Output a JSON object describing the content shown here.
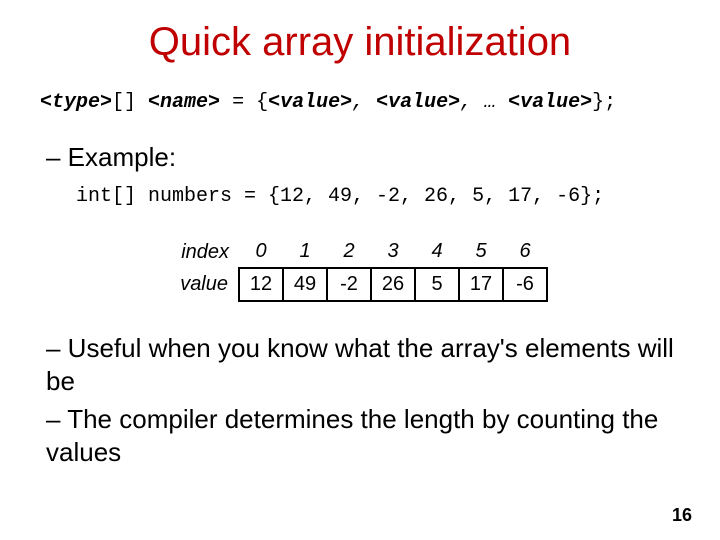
{
  "title": "Quick array initialization",
  "syntax": {
    "type_tok": "<type>",
    "brackets": "[]",
    "name_tok": "<name>",
    "eq": " = {",
    "val_tok": "<value>",
    "comma_sp": ", ",
    "ellipsis": "… ",
    "close": "};"
  },
  "example_heading": "– Example:",
  "example_code": "int[] numbers = {12, 49, -2, 26, 5, 17, -6};",
  "table": {
    "index_label": "index",
    "value_label": "value",
    "indices": [
      "0",
      "1",
      "2",
      "3",
      "4",
      "5",
      "6"
    ],
    "values": [
      "12",
      "49",
      "-2",
      "26",
      "5",
      "17",
      "-6"
    ]
  },
  "bullets": [
    "– Useful when you know what the array's elements will be",
    "– The compiler determines the length by counting the values"
  ],
  "page_number": "16",
  "colors": {
    "title": "#c00000",
    "text": "#000000",
    "bg": "#ffffff"
  }
}
